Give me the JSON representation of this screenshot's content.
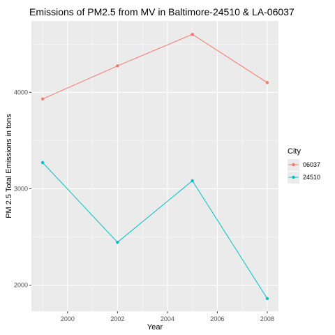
{
  "chart_data": {
    "type": "line",
    "title": "Emissions of PM2.5 from MV in Baltimore-24510 & LA-06037",
    "xlabel": "Year",
    "ylabel": "PM 2.5 Total Emissions in tons",
    "x": [
      1999,
      2002,
      2005,
      2008
    ],
    "xlim": [
      1998.55,
      2008.45
    ],
    "ylim": [
      1730,
      4740
    ],
    "x_ticks": [
      2000,
      2002,
      2004,
      2006,
      2008
    ],
    "y_ticks": [
      2000,
      3000,
      4000
    ],
    "grid": true,
    "legend_position": "right",
    "legend_title": "City",
    "series": [
      {
        "name": "06037",
        "color": "#F8766D",
        "values": [
          3931,
          4274,
          4601,
          4101
        ]
      },
      {
        "name": "24510",
        "color": "#00BFC4",
        "values": [
          3272,
          2445,
          3083,
          1862
        ]
      }
    ]
  }
}
